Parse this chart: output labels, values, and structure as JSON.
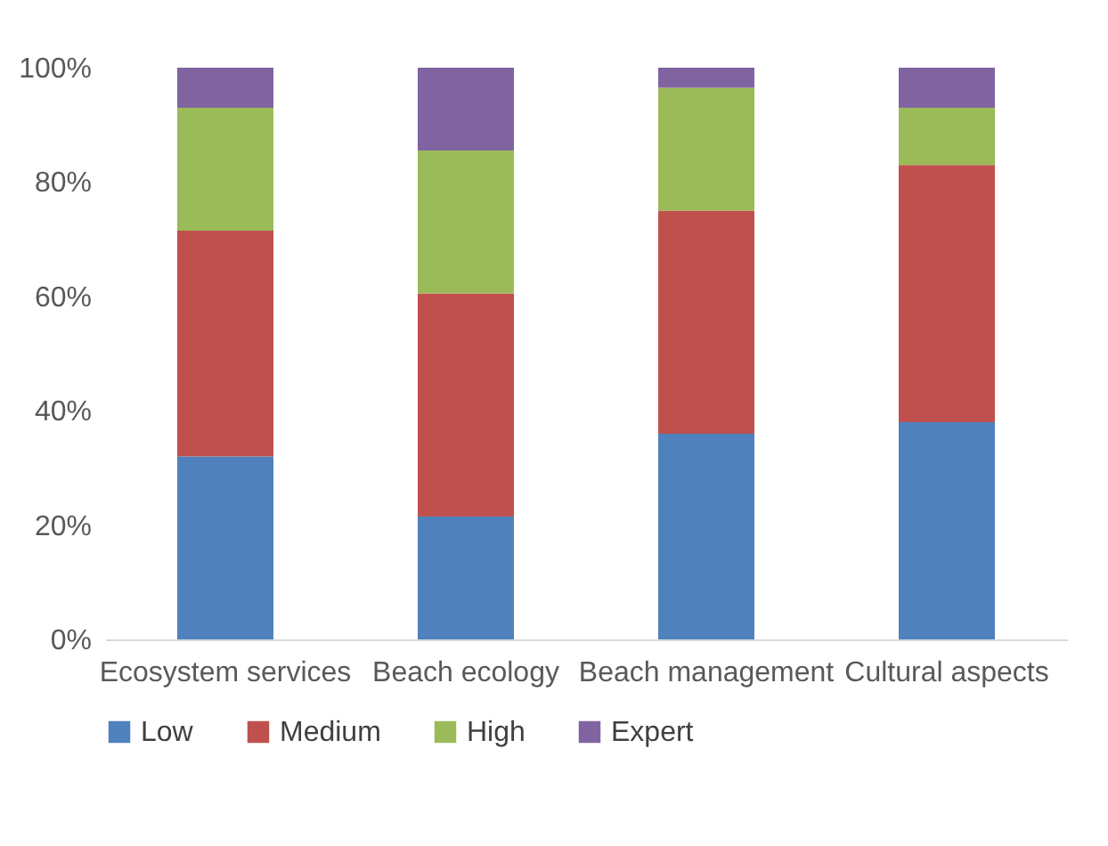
{
  "chart_data": {
    "type": "bar",
    "stacked": true,
    "categories": [
      "Ecosystem services",
      "Beach ecology",
      "Beach management",
      "Cultural aspects"
    ],
    "series": [
      {
        "name": "Low",
        "color": "#4f81bd",
        "values": [
          32,
          21.5,
          36,
          38
        ]
      },
      {
        "name": "Medium",
        "color": "#c0504d",
        "values": [
          39.5,
          39,
          39,
          45
        ]
      },
      {
        "name": "High",
        "color": "#9bbb59",
        "values": [
          21.5,
          25,
          21.5,
          10
        ]
      },
      {
        "name": "Expert",
        "color": "#8064a2",
        "values": [
          7,
          14.5,
          3.5,
          7
        ]
      }
    ],
    "ylim": [
      0,
      100
    ],
    "yticks": [
      {
        "value": 0,
        "label": "0%"
      },
      {
        "value": 20,
        "label": "20%"
      },
      {
        "value": 40,
        "label": "40%"
      },
      {
        "value": 60,
        "label": "60%"
      },
      {
        "value": 80,
        "label": "80%"
      },
      {
        "value": 100,
        "label": "100%"
      }
    ],
    "grid": false,
    "legend": "bottom"
  }
}
